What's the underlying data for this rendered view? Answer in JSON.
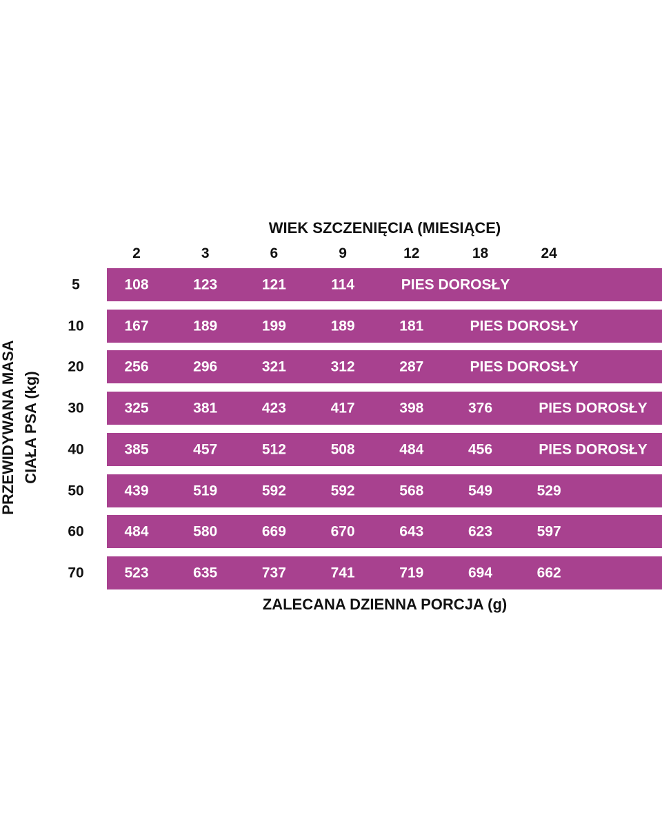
{
  "header": {
    "title": "WIEK SZCZENIĘCIA (MIESIĄCE)",
    "columns": [
      2,
      3,
      6,
      9,
      12,
      18,
      24
    ]
  },
  "side_label": [
    "PRZEWIDYWANA MASA",
    "CIAŁA PSA (kg)"
  ],
  "table": {
    "rows": [
      {
        "weight": 5,
        "cells": [
          108,
          123,
          121,
          114,
          "PIES DOROSŁY"
        ]
      },
      {
        "weight": 10,
        "cells": [
          167,
          189,
          199,
          189,
          181,
          "PIES DOROSŁY"
        ]
      },
      {
        "weight": 20,
        "cells": [
          256,
          296,
          321,
          312,
          287,
          "PIES DOROSŁY"
        ]
      },
      {
        "weight": 30,
        "cells": [
          325,
          381,
          423,
          417,
          398,
          376,
          "PIES DOROSŁY"
        ]
      },
      {
        "weight": 40,
        "cells": [
          385,
          457,
          512,
          508,
          484,
          456,
          "PIES DOROSŁY"
        ]
      },
      {
        "weight": 50,
        "cells": [
          439,
          519,
          592,
          592,
          568,
          549,
          529
        ]
      },
      {
        "weight": 60,
        "cells": [
          484,
          580,
          669,
          670,
          643,
          623,
          597
        ]
      },
      {
        "weight": 70,
        "cells": [
          523,
          635,
          737,
          741,
          719,
          694,
          662
        ]
      }
    ]
  },
  "footer": "ZALECANA DZIENNA PORCJA (g)"
}
